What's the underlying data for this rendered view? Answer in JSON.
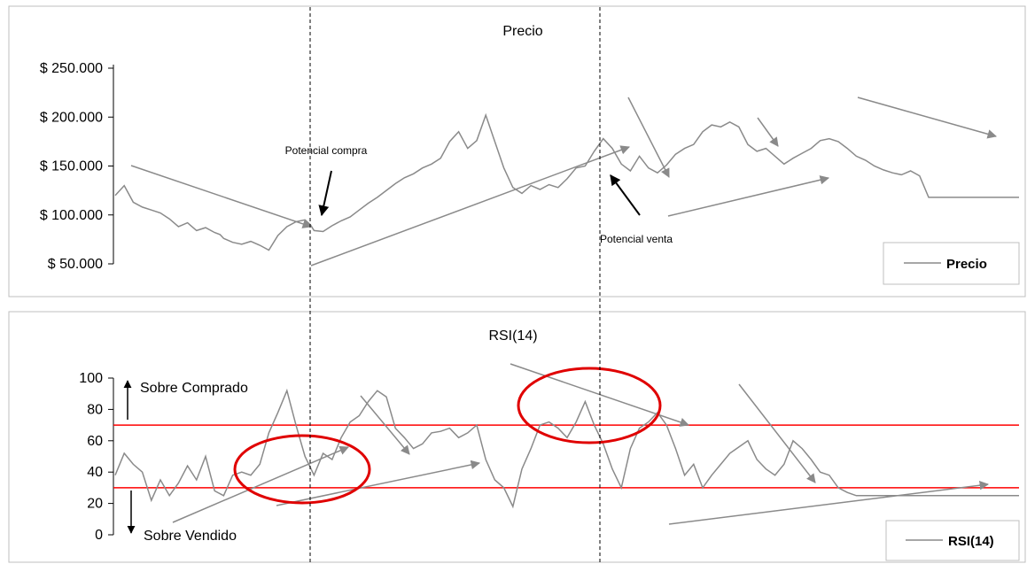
{
  "colors": {
    "series": "#8a8a8a",
    "threshold": "#ff0000",
    "ellipse": "#e00000",
    "annotation_arrow": "#8a8a8a",
    "label_arrow": "#000000",
    "panel_border": "#bfbfbf",
    "divider": "#000000"
  },
  "chart_data": [
    {
      "type": "line",
      "title": "Precio",
      "legend": {
        "label": "Precio",
        "position": "bottom-right"
      },
      "ylim": [
        50000,
        250000
      ],
      "y_ticks": [
        {
          "value": 50000,
          "label": "$ 50.000"
        },
        {
          "value": 100000,
          "label": "$ 100.000"
        },
        {
          "value": 150000,
          "label": "$ 150.000"
        },
        {
          "value": 200000,
          "label": "$ 200.000"
        },
        {
          "value": 250000,
          "label": "$ 250.000"
        }
      ],
      "x": [
        0,
        5,
        10,
        15,
        20,
        25,
        30,
        35,
        40,
        45,
        50,
        55,
        58,
        60,
        65,
        70,
        75,
        80,
        85,
        90,
        95,
        100,
        105,
        108,
        110,
        115,
        120,
        125,
        130,
        135,
        140,
        145,
        150,
        155,
        160,
        165,
        170,
        175,
        180,
        185,
        190,
        195,
        200,
        205,
        210,
        215,
        220,
        225,
        230,
        235,
        240,
        245,
        250,
        255,
        260,
        265,
        270,
        275,
        280,
        285,
        290,
        295,
        300,
        305,
        310,
        315,
        320,
        325,
        330,
        335,
        340,
        345,
        350,
        355,
        360,
        365,
        370,
        375,
        380,
        385,
        390,
        395,
        400,
        405,
        410,
        415,
        420,
        425,
        430,
        435,
        440,
        445,
        450,
        455,
        460,
        465,
        470,
        475,
        480,
        485,
        490,
        495,
        500
      ],
      "values": [
        120000,
        130000,
        113000,
        108000,
        105000,
        102000,
        96000,
        88000,
        92000,
        84000,
        87000,
        82000,
        80000,
        76000,
        72000,
        70000,
        73000,
        69000,
        64000,
        79000,
        88000,
        93000,
        95000,
        90000,
        84000,
        83000,
        89000,
        94000,
        98000,
        105000,
        112000,
        118000,
        125000,
        132000,
        138000,
        142000,
        148000,
        152000,
        158000,
        175000,
        185000,
        168000,
        176000,
        202000,
        175000,
        148000,
        128000,
        122000,
        130000,
        126000,
        131000,
        128000,
        137000,
        148000,
        150000,
        165000,
        178000,
        168000,
        152000,
        145000,
        160000,
        148000,
        143000,
        151000,
        162000,
        168000,
        172000,
        185000,
        192000,
        190000,
        195000,
        190000,
        172000,
        165000,
        168000,
        160000,
        152000,
        158000,
        163000,
        168000,
        176000,
        178000,
        175000,
        168000,
        160000,
        156000,
        150000,
        146000,
        143000,
        141000,
        145000,
        140000,
        118000,
        118000,
        118000,
        118000,
        118000,
        118000,
        118000,
        118000,
        118000,
        118000,
        118000
      ],
      "annotations": [
        "Potencial compra",
        "Potencial venta"
      ]
    },
    {
      "type": "line",
      "title": "RSI(14)",
      "legend": {
        "label": "RSI(14)",
        "position": "bottom-right"
      },
      "ylim": [
        0,
        100
      ],
      "y_ticks": [
        0,
        20,
        40,
        60,
        80,
        100
      ],
      "thresholds": [
        30,
        70
      ],
      "x": [
        0,
        5,
        10,
        15,
        20,
        25,
        30,
        35,
        40,
        45,
        50,
        55,
        60,
        65,
        70,
        75,
        80,
        85,
        90,
        95,
        100,
        105,
        110,
        115,
        120,
        125,
        130,
        135,
        140,
        145,
        150,
        155,
        160,
        165,
        170,
        175,
        180,
        185,
        190,
        195,
        200,
        205,
        210,
        215,
        220,
        225,
        230,
        235,
        240,
        245,
        250,
        255,
        260,
        265,
        270,
        275,
        280,
        285,
        290,
        295,
        300,
        305,
        310,
        315,
        320,
        325,
        330,
        335,
        340,
        345,
        350,
        355,
        360,
        365,
        370,
        375,
        380,
        385,
        390,
        395,
        400,
        405,
        410,
        415,
        420,
        425,
        430,
        435,
        440,
        445,
        450,
        455,
        460,
        465,
        470,
        475,
        480,
        485,
        490,
        495,
        500
      ],
      "values": [
        38,
        52,
        45,
        40,
        22,
        35,
        25,
        33,
        44,
        35,
        50,
        28,
        25,
        38,
        40,
        38,
        45,
        65,
        78,
        92,
        70,
        50,
        38,
        52,
        48,
        62,
        72,
        76,
        85,
        92,
        88,
        68,
        62,
        55,
        58,
        65,
        66,
        68,
        62,
        65,
        70,
        48,
        35,
        30,
        18,
        42,
        55,
        70,
        72,
        68,
        62,
        72,
        85,
        70,
        58,
        42,
        30,
        55,
        68,
        72,
        78,
        70,
        55,
        38,
        45,
        30,
        38,
        45,
        52,
        56,
        60,
        48,
        42,
        38,
        45,
        60,
        55,
        48,
        40,
        38,
        30,
        27,
        25,
        25,
        25,
        25,
        25,
        25,
        25,
        25,
        25,
        25,
        25,
        25,
        25,
        25,
        25,
        25,
        25,
        25,
        25
      ],
      "annotations": [
        "Sobre Comprado",
        "Sobre Vendido"
      ]
    }
  ]
}
